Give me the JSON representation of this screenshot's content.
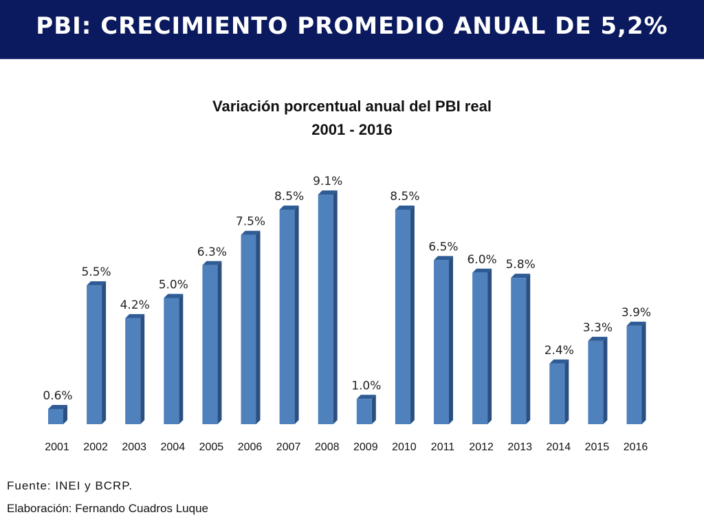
{
  "header": {
    "title": "PBI: CRECIMIENTO PROMEDIO ANUAL DE 5,2%"
  },
  "chart_data": {
    "type": "bar",
    "title": "Variación porcentual anual del PBI real",
    "subtitle": "2001 - 2016",
    "categories": [
      "2001",
      "2002",
      "2003",
      "2004",
      "2005",
      "2006",
      "2007",
      "2008",
      "2009",
      "2010",
      "2011",
      "2012",
      "2013",
      "2014",
      "2015",
      "2016"
    ],
    "values": [
      0.6,
      5.5,
      4.2,
      5.0,
      6.3,
      7.5,
      8.5,
      9.1,
      1.0,
      8.5,
      6.5,
      6.0,
      5.8,
      2.4,
      3.3,
      3.9
    ],
    "labels": [
      "0.6%",
      "5.5%",
      "4.2%",
      "5.0%",
      "6.3%",
      "7.5%",
      "8.5%",
      "9.1%",
      "1.0%",
      "8.5%",
      "6.5%",
      "6.0%",
      "5.8%",
      "2.4%",
      "3.3%",
      "3.9%"
    ],
    "xlabel": "",
    "ylabel": "",
    "grid": false,
    "bar_color": "#4f81bd"
  },
  "footer": {
    "source": "Fuente: INEI y BCRP.",
    "credit": "Elaboración: Fernando Cuadros Luque"
  }
}
